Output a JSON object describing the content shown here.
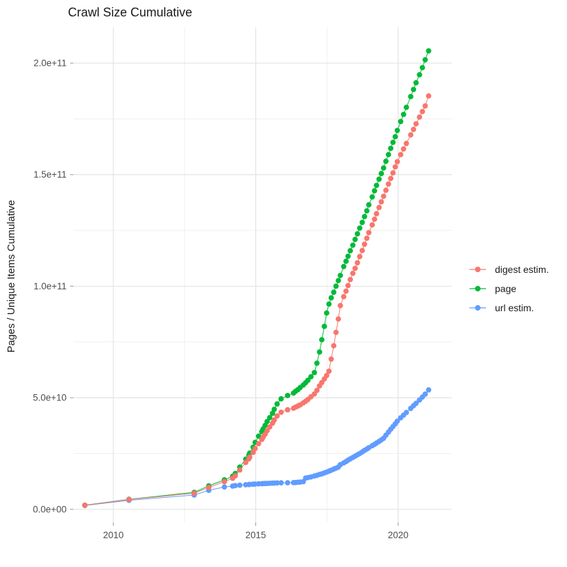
{
  "chart_data": {
    "type": "line-scatter",
    "title": "Crawl Size Cumulative",
    "xlabel": "",
    "ylabel": "Pages / Unique Items Cumulative",
    "value_unit": "billions of pages/items (1e9)",
    "grid": true,
    "legend_position": "right",
    "xlim": [
      2008.6,
      2021.88
    ],
    "ylim_billions": [
      -5.9,
      216
    ],
    "x_ticks": [
      {
        "value": 2010,
        "label": "2010"
      },
      {
        "value": 2015,
        "label": "2015"
      },
      {
        "value": 2020,
        "label": "2020"
      }
    ],
    "x_minor_ticks": [
      2012.5,
      2017.5
    ],
    "y_ticks": [
      {
        "value_billions": 0,
        "label": "0.0e+00"
      },
      {
        "value_billions": 50,
        "label": "5.0e+10"
      },
      {
        "value_billions": 100,
        "label": "1.0e+11"
      },
      {
        "value_billions": 150,
        "label": "1.5e+11"
      },
      {
        "value_billions": 200,
        "label": "2.0e+11"
      }
    ],
    "y_minor_ticks_billions": [
      25,
      75,
      125,
      175
    ],
    "series": [
      {
        "name": "digest estim.",
        "color": "#F8766D",
        "points_year_billions": [
          [
            2009.0,
            1.8
          ],
          [
            2010.55,
            4.4
          ],
          [
            2012.84,
            7.2
          ],
          [
            2013.35,
            9.8
          ],
          [
            2013.9,
            12.4
          ],
          [
            2014.19,
            13.9
          ],
          [
            2014.28,
            15.0
          ],
          [
            2014.44,
            17.6
          ],
          [
            2014.65,
            21.0
          ],
          [
            2014.76,
            22.6
          ],
          [
            2014.79,
            23.4
          ],
          [
            2014.91,
            25.5
          ],
          [
            2014.98,
            27.2
          ],
          [
            2015.1,
            29.4
          ],
          [
            2015.21,
            31.3
          ],
          [
            2015.26,
            32.3
          ],
          [
            2015.33,
            33.7
          ],
          [
            2015.4,
            35.2
          ],
          [
            2015.49,
            36.9
          ],
          [
            2015.59,
            38.6
          ],
          [
            2015.65,
            40.0
          ],
          [
            2015.75,
            41.8
          ],
          [
            2015.89,
            43.5
          ],
          [
            2016.12,
            44.6
          ],
          [
            2016.33,
            45.3
          ],
          [
            2016.4,
            45.8
          ],
          [
            2016.48,
            46.3
          ],
          [
            2016.56,
            46.8
          ],
          [
            2016.67,
            47.7
          ],
          [
            2016.75,
            48.4
          ],
          [
            2016.83,
            49.2
          ],
          [
            2016.94,
            50.4
          ],
          [
            2017.06,
            51.7
          ],
          [
            2017.15,
            53.3
          ],
          [
            2017.24,
            55.3
          ],
          [
            2017.32,
            56.8
          ],
          [
            2017.41,
            58.4
          ],
          [
            2017.49,
            60.0
          ],
          [
            2017.57,
            61.9
          ],
          [
            2017.65,
            67.3
          ],
          [
            2017.74,
            73.3
          ],
          [
            2017.82,
            79.3
          ],
          [
            2017.9,
            85.3
          ],
          [
            2017.97,
            91.3
          ],
          [
            2018.09,
            95.3
          ],
          [
            2018.17,
            97.8
          ],
          [
            2018.24,
            100.3
          ],
          [
            2018.32,
            103.0
          ],
          [
            2018.41,
            105.8
          ],
          [
            2018.49,
            108.0
          ],
          [
            2018.57,
            110.5
          ],
          [
            2018.65,
            113.3
          ],
          [
            2018.74,
            116.0
          ],
          [
            2018.82,
            118.8
          ],
          [
            2018.9,
            121.5
          ],
          [
            2018.97,
            124.0
          ],
          [
            2019.09,
            127.5
          ],
          [
            2019.17,
            130.0
          ],
          [
            2019.24,
            132.5
          ],
          [
            2019.33,
            135.3
          ],
          [
            2019.41,
            137.8
          ],
          [
            2019.49,
            140.3
          ],
          [
            2019.57,
            143.0
          ],
          [
            2019.66,
            145.8
          ],
          [
            2019.74,
            148.3
          ],
          [
            2019.82,
            150.8
          ],
          [
            2019.9,
            153.5
          ],
          [
            2019.97,
            155.8
          ],
          [
            2020.09,
            159.0
          ],
          [
            2020.19,
            161.5
          ],
          [
            2020.29,
            164.0
          ],
          [
            2020.44,
            167.8
          ],
          [
            2020.54,
            170.3
          ],
          [
            2020.63,
            172.8
          ],
          [
            2020.75,
            175.8
          ],
          [
            2020.85,
            178.3
          ],
          [
            2020.95,
            180.8
          ],
          [
            2021.07,
            185.3
          ]
        ]
      },
      {
        "name": "page",
        "color": "#00BA38",
        "points_year_billions": [
          [
            2009.0,
            1.8
          ],
          [
            2010.55,
            4.5
          ],
          [
            2012.84,
            7.6
          ],
          [
            2013.35,
            10.5
          ],
          [
            2013.9,
            13.2
          ],
          [
            2014.19,
            14.8
          ],
          [
            2014.28,
            16.0
          ],
          [
            2014.44,
            18.9
          ],
          [
            2014.65,
            22.5
          ],
          [
            2014.76,
            24.3
          ],
          [
            2014.79,
            25.2
          ],
          [
            2014.91,
            27.8
          ],
          [
            2014.98,
            30.0
          ],
          [
            2015.1,
            32.8
          ],
          [
            2015.21,
            34.8
          ],
          [
            2015.26,
            36.0
          ],
          [
            2015.33,
            37.6
          ],
          [
            2015.4,
            39.3
          ],
          [
            2015.49,
            41.1
          ],
          [
            2015.59,
            43.0
          ],
          [
            2015.65,
            44.8
          ],
          [
            2015.75,
            47.2
          ],
          [
            2015.89,
            49.5
          ],
          [
            2016.12,
            51.0
          ],
          [
            2016.33,
            52.1
          ],
          [
            2016.4,
            52.9
          ],
          [
            2016.48,
            53.6
          ],
          [
            2016.56,
            54.6
          ],
          [
            2016.67,
            55.7
          ],
          [
            2016.75,
            56.7
          ],
          [
            2016.83,
            57.8
          ],
          [
            2016.94,
            59.4
          ],
          [
            2017.06,
            61.3
          ],
          [
            2017.15,
            65.5
          ],
          [
            2017.24,
            70.5
          ],
          [
            2017.32,
            76.0
          ],
          [
            2017.41,
            82.0
          ],
          [
            2017.49,
            88.0
          ],
          [
            2017.57,
            92.0
          ],
          [
            2017.65,
            94.8
          ],
          [
            2017.74,
            97.3
          ],
          [
            2017.82,
            100.0
          ],
          [
            2017.9,
            102.5
          ],
          [
            2017.97,
            104.8
          ],
          [
            2018.09,
            108.8
          ],
          [
            2018.17,
            111.2
          ],
          [
            2018.24,
            113.4
          ],
          [
            2018.32,
            115.9
          ],
          [
            2018.41,
            118.4
          ],
          [
            2018.49,
            121.0
          ],
          [
            2018.57,
            123.5
          ],
          [
            2018.65,
            126.0
          ],
          [
            2018.74,
            128.6
          ],
          [
            2018.82,
            131.2
          ],
          [
            2018.9,
            133.8
          ],
          [
            2018.97,
            136.5
          ],
          [
            2019.09,
            140.0
          ],
          [
            2019.17,
            142.8
          ],
          [
            2019.24,
            145.2
          ],
          [
            2019.33,
            148.0
          ],
          [
            2019.41,
            150.5
          ],
          [
            2019.49,
            153.0
          ],
          [
            2019.57,
            156.0
          ],
          [
            2019.66,
            159.0
          ],
          [
            2019.74,
            161.8
          ],
          [
            2019.82,
            164.5
          ],
          [
            2019.9,
            167.0
          ],
          [
            2019.97,
            169.8
          ],
          [
            2020.09,
            173.8
          ],
          [
            2020.19,
            177.0
          ],
          [
            2020.29,
            180.2
          ],
          [
            2020.44,
            185.0
          ],
          [
            2020.54,
            188.2
          ],
          [
            2020.63,
            191.2
          ],
          [
            2020.75,
            194.8
          ],
          [
            2020.85,
            198.0
          ],
          [
            2020.95,
            201.5
          ],
          [
            2021.07,
            205.5
          ]
        ]
      },
      {
        "name": "url estim.",
        "color": "#619CFF",
        "points_year_billions": [
          [
            2009.0,
            1.7
          ],
          [
            2010.55,
            4.0
          ],
          [
            2012.84,
            6.4
          ],
          [
            2013.35,
            8.5
          ],
          [
            2013.9,
            10.0
          ],
          [
            2014.19,
            10.4
          ],
          [
            2014.28,
            10.6
          ],
          [
            2014.44,
            10.8
          ],
          [
            2014.65,
            11.0
          ],
          [
            2014.76,
            11.1
          ],
          [
            2014.79,
            11.15
          ],
          [
            2014.91,
            11.25
          ],
          [
            2014.98,
            11.3
          ],
          [
            2015.1,
            11.4
          ],
          [
            2015.21,
            11.45
          ],
          [
            2015.26,
            11.5
          ],
          [
            2015.33,
            11.55
          ],
          [
            2015.4,
            11.6
          ],
          [
            2015.49,
            11.65
          ],
          [
            2015.59,
            11.7
          ],
          [
            2015.65,
            11.75
          ],
          [
            2015.75,
            11.8
          ],
          [
            2015.89,
            11.85
          ],
          [
            2016.12,
            11.9
          ],
          [
            2016.33,
            11.95
          ],
          [
            2016.4,
            12.0
          ],
          [
            2016.48,
            12.1
          ],
          [
            2016.56,
            12.2
          ],
          [
            2016.67,
            12.4
          ],
          [
            2016.75,
            14.0
          ],
          [
            2016.83,
            14.2
          ],
          [
            2016.94,
            14.5
          ],
          [
            2017.06,
            14.9
          ],
          [
            2017.15,
            15.2
          ],
          [
            2017.24,
            15.6
          ],
          [
            2017.32,
            15.9
          ],
          [
            2017.41,
            16.3
          ],
          [
            2017.49,
            16.7
          ],
          [
            2017.57,
            17.1
          ],
          [
            2017.65,
            17.5
          ],
          [
            2017.74,
            18.0
          ],
          [
            2017.82,
            18.4
          ],
          [
            2017.9,
            18.9
          ],
          [
            2017.97,
            20.0
          ],
          [
            2018.09,
            20.8
          ],
          [
            2018.17,
            21.4
          ],
          [
            2018.24,
            22.0
          ],
          [
            2018.32,
            22.6
          ],
          [
            2018.41,
            23.2
          ],
          [
            2018.49,
            23.8
          ],
          [
            2018.57,
            24.4
          ],
          [
            2018.65,
            25.0
          ],
          [
            2018.74,
            25.7
          ],
          [
            2018.82,
            26.4
          ],
          [
            2018.9,
            27.0
          ],
          [
            2018.97,
            27.6
          ],
          [
            2019.09,
            28.5
          ],
          [
            2019.17,
            29.1
          ],
          [
            2019.24,
            29.7
          ],
          [
            2019.33,
            30.4
          ],
          [
            2019.41,
            31.1
          ],
          [
            2019.49,
            31.8
          ],
          [
            2019.57,
            33.2
          ],
          [
            2019.66,
            34.6
          ],
          [
            2019.74,
            35.9
          ],
          [
            2019.82,
            37.1
          ],
          [
            2019.9,
            38.3
          ],
          [
            2019.97,
            39.5
          ],
          [
            2020.09,
            41.0
          ],
          [
            2020.19,
            42.2
          ],
          [
            2020.29,
            43.4
          ],
          [
            2020.44,
            45.2
          ],
          [
            2020.54,
            46.4
          ],
          [
            2020.63,
            47.5
          ],
          [
            2020.75,
            49.0
          ],
          [
            2020.85,
            50.3
          ],
          [
            2020.95,
            51.6
          ],
          [
            2021.07,
            53.5
          ]
        ]
      }
    ]
  }
}
